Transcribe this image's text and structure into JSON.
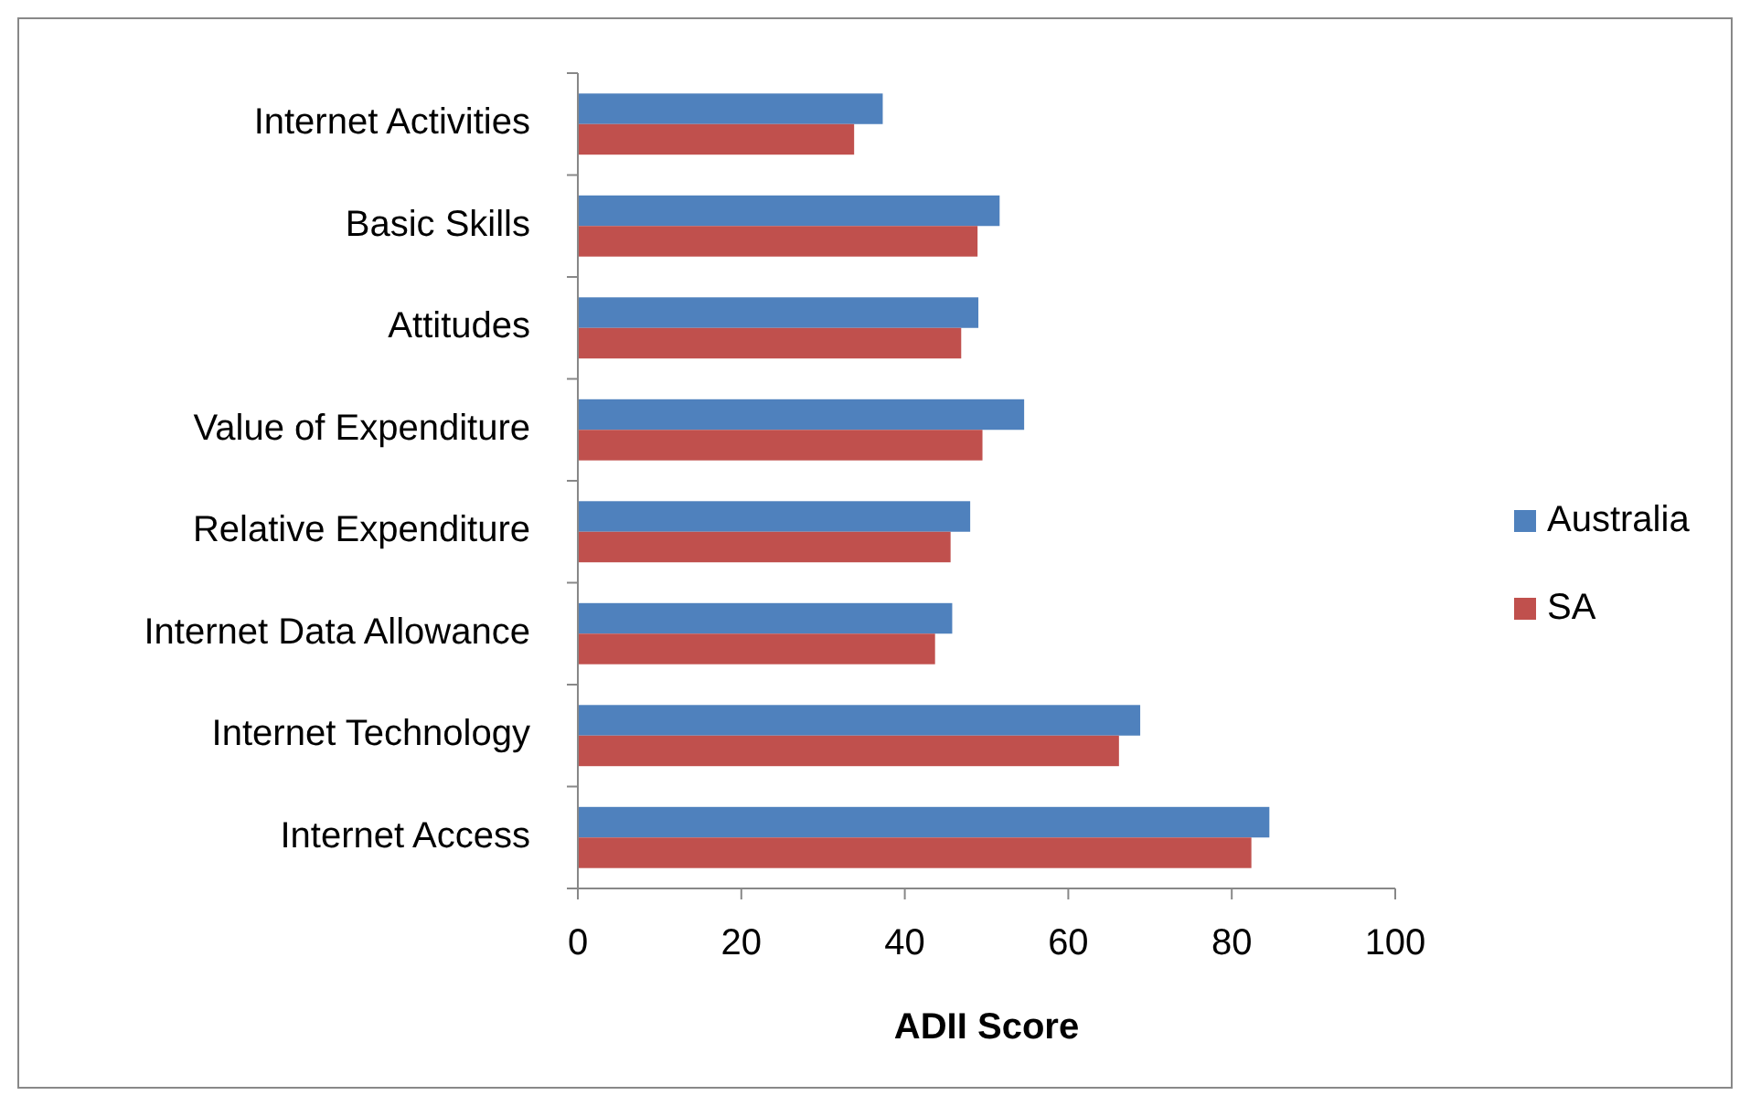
{
  "chart_data": {
    "type": "bar",
    "orientation": "horizontal",
    "xlabel": "ADII Score",
    "categories": [
      "Internet Activities",
      "Basic Skills",
      "Attitudes",
      "Value of Expenditure",
      "Relative Expenditure",
      "Internet Data Allowance",
      "Internet Technology",
      "Internet Access"
    ],
    "series": [
      {
        "name": "Australia",
        "color": "#4f81bd",
        "values": [
          37.3,
          51.6,
          49.0,
          54.6,
          48.0,
          45.8,
          68.8,
          84.6
        ]
      },
      {
        "name": "SA",
        "color": "#c0504d",
        "values": [
          33.8,
          48.9,
          46.9,
          49.5,
          45.6,
          43.7,
          66.2,
          82.4
        ]
      }
    ],
    "xlim": [
      0,
      100
    ],
    "xticks": [
      0,
      20,
      40,
      60,
      80,
      100
    ],
    "grid": false,
    "legend": "right"
  }
}
